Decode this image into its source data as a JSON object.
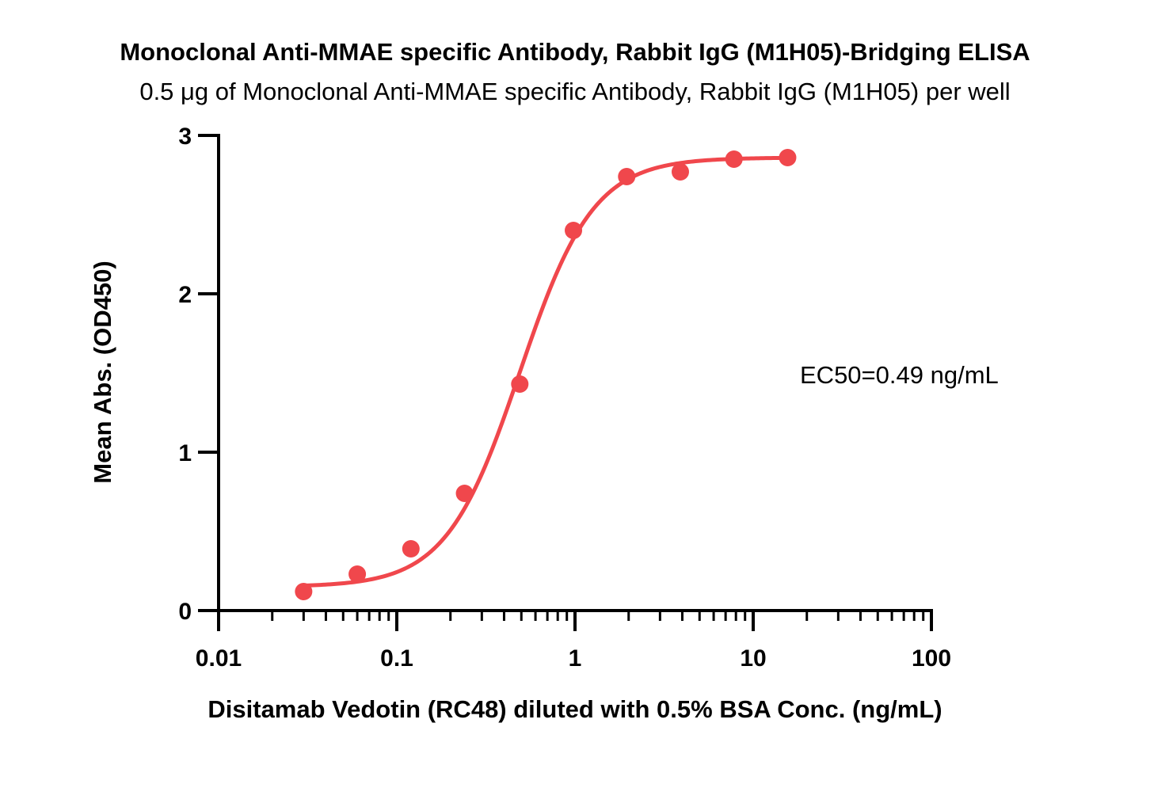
{
  "chart_data": {
    "type": "scatter",
    "title": "Monoclonal Anti-MMAE specific Antibody, Rabbit IgG (M1H05)-Bridging ELISA",
    "subtitle": "0.5 μg of Monoclonal Anti-MMAE specific Antibody, Rabbit IgG (M1H05) per well",
    "xlabel": "Disitamab Vedotin (RC48) diluted with 0.5% BSA Conc. (ng/mL)",
    "ylabel": "Mean Abs. (OD450)",
    "x_scale": "log",
    "xlim": [
      0.01,
      100
    ],
    "ylim": [
      0,
      3
    ],
    "x_ticks": [
      0.01,
      0.1,
      1,
      10,
      100
    ],
    "x_tick_labels": [
      "0.01",
      "0.1",
      "1",
      "10",
      "100"
    ],
    "y_ticks": [
      0,
      1,
      2,
      3
    ],
    "y_tick_labels": [
      "0",
      "1",
      "2",
      "3"
    ],
    "series": [
      {
        "x": [
          0.03,
          0.06,
          0.12,
          0.24,
          0.49,
          0.98,
          1.95,
          3.9,
          7.8,
          15.6
        ],
        "y": [
          0.12,
          0.23,
          0.39,
          0.74,
          1.43,
          2.4,
          2.74,
          2.77,
          2.85,
          2.86
        ],
        "color": "#f0474c"
      }
    ],
    "fit_curve": {
      "model": "4PL",
      "bottom": 0.15,
      "top": 2.86,
      "ec50": 0.49,
      "hill": 2.1,
      "x_range": [
        0.03,
        15.6
      ],
      "color": "#f0474c"
    },
    "annotations": [
      {
        "text": "EC50=0.49 ng/mL"
      }
    ],
    "grid": false,
    "legend": "none"
  }
}
